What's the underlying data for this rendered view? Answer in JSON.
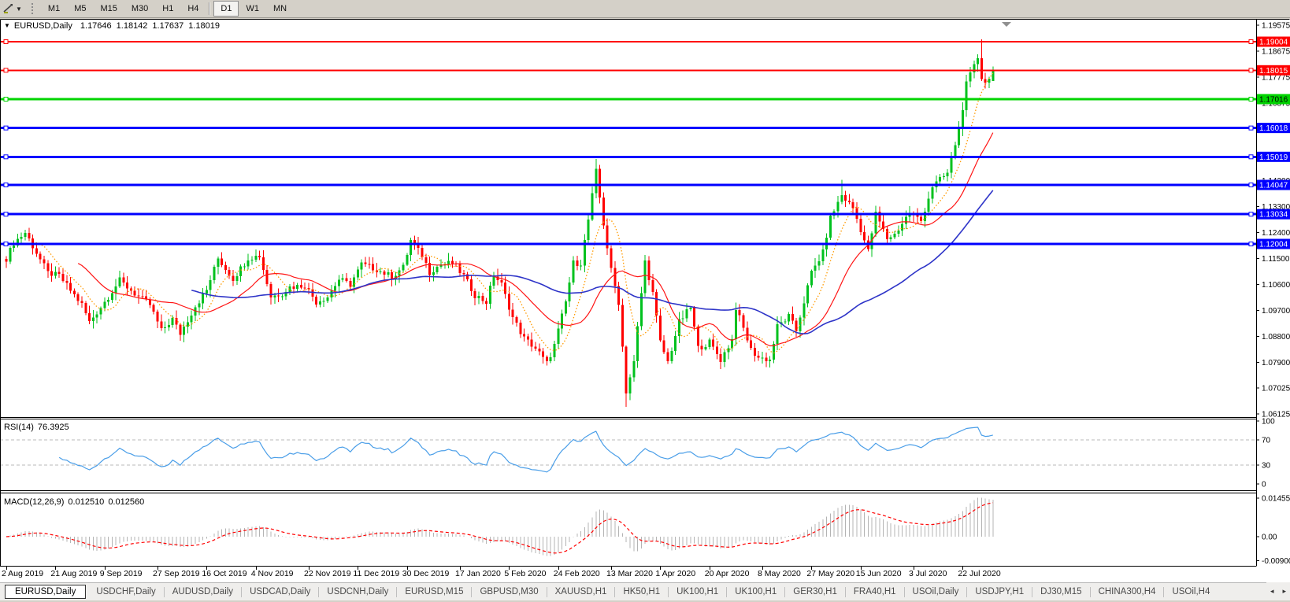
{
  "toolbar": {
    "timeframes": [
      {
        "label": "M1"
      },
      {
        "label": "M5"
      },
      {
        "label": "M15"
      },
      {
        "label": "M30"
      },
      {
        "label": "H1"
      },
      {
        "label": "H4"
      },
      {
        "label": "D1",
        "active": true,
        "separator_before": true
      },
      {
        "label": "W1"
      },
      {
        "label": "MN"
      }
    ]
  },
  "chart": {
    "symbol_label": "EURUSD,Daily",
    "open": "1.17646",
    "high": "1.18142",
    "low": "1.17637",
    "close": "1.18019"
  },
  "chart_data": {
    "type": "candlestick",
    "symbol": "EURUSD",
    "timeframe": "Daily",
    "num_candles": 262,
    "colors": {
      "bull": "#00c11e",
      "bear": "#ff0000",
      "background": "#ffffff",
      "axis_text": "#000000"
    },
    "price_anchors": [
      [
        0,
        1.115
      ],
      [
        2,
        1.1205
      ],
      [
        5,
        1.124
      ],
      [
        8,
        1.117
      ],
      [
        11,
        1.11
      ],
      [
        14,
        1.109
      ],
      [
        17,
        1.104
      ],
      [
        20,
        1.099
      ],
      [
        22,
        1.093
      ],
      [
        26,
        1.1
      ],
      [
        30,
        1.1074
      ],
      [
        33,
        1.104
      ],
      [
        35,
        1.1017
      ],
      [
        38,
        1.099
      ],
      [
        41,
        1.0899
      ],
      [
        44,
        1.094
      ],
      [
        46,
        1.089
      ],
      [
        50,
        1.0985
      ],
      [
        53,
        1.104
      ],
      [
        56,
        1.115
      ],
      [
        60,
        1.108
      ],
      [
        64,
        1.1152
      ],
      [
        67,
        1.116
      ],
      [
        70,
        1.1018
      ],
      [
        73,
        1.103
      ],
      [
        75,
        1.1051
      ],
      [
        79,
        1.1058
      ],
      [
        82,
        1.1
      ],
      [
        85,
        1.1018
      ],
      [
        88,
        1.1078
      ],
      [
        91,
        1.106
      ],
      [
        94,
        1.113
      ],
      [
        98,
        1.1112
      ],
      [
        102,
        1.1087
      ],
      [
        105,
        1.112
      ],
      [
        107,
        1.1212
      ],
      [
        110,
        1.116
      ],
      [
        112,
        1.1103
      ],
      [
        115,
        1.113
      ],
      [
        118,
        1.1135
      ],
      [
        121,
        1.109
      ],
      [
        124,
        1.1023
      ],
      [
        127,
        1.1
      ],
      [
        129,
        1.1093
      ],
      [
        131,
        1.106
      ],
      [
        134,
        1.0945
      ],
      [
        137,
        1.0873
      ],
      [
        140,
        1.084
      ],
      [
        143,
        1.0786
      ],
      [
        145,
        1.085
      ],
      [
        148,
        1.1
      ],
      [
        150,
        1.1134
      ],
      [
        152,
        1.1135
      ],
      [
        154,
        1.1284
      ],
      [
        156,
        1.145
      ],
      [
        158,
        1.127
      ],
      [
        160,
        1.1109
      ],
      [
        162,
        1.0998
      ],
      [
        164,
        1.069
      ],
      [
        166,
        1.079
      ],
      [
        168,
        1.103
      ],
      [
        169,
        1.114
      ],
      [
        171,
        1.103
      ],
      [
        173,
        1.086
      ],
      [
        175,
        1.0791
      ],
      [
        178,
        1.093
      ],
      [
        181,
        1.098
      ],
      [
        183,
        1.084
      ],
      [
        186,
        1.086
      ],
      [
        189,
        1.08
      ],
      [
        192,
        1.087
      ],
      [
        193,
        1.098
      ],
      [
        197,
        1.0834
      ],
      [
        199,
        1.0807
      ],
      [
        202,
        1.08
      ],
      [
        204,
        1.0915
      ],
      [
        207,
        1.0949
      ],
      [
        209,
        1.09
      ],
      [
        213,
        1.1101
      ],
      [
        216,
        1.117
      ],
      [
        218,
        1.129
      ],
      [
        221,
        1.137
      ],
      [
        224,
        1.1325
      ],
      [
        228,
        1.1175
      ],
      [
        230,
        1.1305
      ],
      [
        233,
        1.1219
      ],
      [
        235,
        1.1234
      ],
      [
        239,
        1.131
      ],
      [
        242,
        1.128
      ],
      [
        245,
        1.14
      ],
      [
        249,
        1.1445
      ],
      [
        252,
        1.1596
      ],
      [
        254,
        1.1752
      ],
      [
        257,
        1.1847
      ],
      [
        258,
        1.1778
      ],
      [
        259,
        1.1762
      ],
      [
        260,
        1.177
      ],
      [
        261,
        1.18019
      ]
    ],
    "key_candles": {
      "156": {
        "high": 1.1495
      },
      "164": {
        "low": 1.0636
      },
      "221": {
        "high": 1.1422
      },
      "258": {
        "high": 1.1909
      },
      "261": {
        "open": 1.17646,
        "high": 1.18142,
        "low": 1.17637,
        "close": 1.18019
      }
    },
    "horizontal_lines": [
      {
        "price": 1.19004,
        "color": "#ff0000",
        "label": "1.19004",
        "label_text": "#ffffff",
        "width": 2
      },
      {
        "price": 1.18015,
        "color": "#ff0000",
        "label": "1.18015",
        "label_text": "#ffffff",
        "width": 2
      },
      {
        "price": 1.17016,
        "color": "#00d400",
        "label": "1.17016",
        "label_text": "#000000",
        "width": 3
      },
      {
        "price": 1.16018,
        "color": "#0000ff",
        "label": "1.16018",
        "label_text": "#ffffff",
        "width": 3
      },
      {
        "price": 1.15019,
        "color": "#0000ff",
        "label": "1.15019",
        "label_text": "#ffffff",
        "width": 3
      },
      {
        "price": 1.14047,
        "color": "#0000ff",
        "label": "1.14047",
        "label_text": "#ffffff",
        "width": 3
      },
      {
        "price": 1.13034,
        "color": "#0000ff",
        "label": "1.13034",
        "label_text": "#ffffff",
        "width": 3
      },
      {
        "price": 1.12004,
        "color": "#0000ff",
        "label": "1.12004",
        "label_text": "#ffffff",
        "width": 3
      }
    ],
    "y_ticks": [
      "1.19575",
      "1.18675",
      "1.17775",
      "1.16875",
      "1.14200",
      "1.13300",
      "1.12400",
      "1.11500",
      "1.10600",
      "1.09700",
      "1.08800",
      "1.07900",
      "1.07025",
      "1.06125"
    ],
    "x_labels": [
      {
        "label": "2 Aug 2019",
        "index": 0
      },
      {
        "label": "21 Aug 2019",
        "index": 13
      },
      {
        "label": "9 Sep 2019",
        "index": 26
      },
      {
        "label": "27 Sep 2019",
        "index": 40
      },
      {
        "label": "16 Oct 2019",
        "index": 53
      },
      {
        "label": "4 Nov 2019",
        "index": 66
      },
      {
        "label": "22 Nov 2019",
        "index": 80
      },
      {
        "label": "11 Dec 2019",
        "index": 93
      },
      {
        "label": "30 Dec 2019",
        "index": 106
      },
      {
        "label": "17 Jan 2020",
        "index": 120
      },
      {
        "label": "5 Feb 2020",
        "index": 133
      },
      {
        "label": "24 Feb 2020",
        "index": 146
      },
      {
        "label": "13 Mar 2020",
        "index": 160
      },
      {
        "label": "1 Apr 2020",
        "index": 173
      },
      {
        "label": "20 Apr 2020",
        "index": 186
      },
      {
        "label": "8 May 2020",
        "index": 200
      },
      {
        "label": "27 May 2020",
        "index": 213
      },
      {
        "label": "15 Jun 2020",
        "index": 226
      },
      {
        "label": "3 Jul 2020",
        "index": 240
      },
      {
        "label": "22 Jul 2020",
        "index": 253
      }
    ],
    "moving_averages": [
      {
        "period": 8,
        "color": "#ff9a00",
        "style": "dotted",
        "width": 1.3
      },
      {
        "period": 20,
        "color": "#ff1414",
        "style": "solid",
        "width": 1.2
      },
      {
        "period": 50,
        "color": "#2e34c8",
        "style": "solid",
        "width": 1.6
      }
    ],
    "rsi": {
      "label": "RSI(14)",
      "value": "76.3925",
      "period": 14,
      "levels": [
        70,
        30
      ],
      "axis_labels": [
        "100",
        "70",
        "30",
        "0"
      ],
      "color": "#4a9ee8"
    },
    "macd": {
      "label": "MACD(12,26,9)",
      "value_main": "0.012510",
      "value_signal": "0.012560",
      "fast": 12,
      "slow": 26,
      "signal_period": 9,
      "axis_labels": [
        "0.014556",
        "0.00",
        "-0.009001"
      ],
      "histogram_color": "#b4b4b4",
      "signal_color": "#ff0000"
    }
  },
  "tabs": {
    "items": [
      {
        "label": "EURUSD,Daily",
        "active": true
      },
      {
        "label": "USDCHF,Daily"
      },
      {
        "label": "AUDUSD,Daily"
      },
      {
        "label": "USDCAD,Daily"
      },
      {
        "label": "USDCNH,Daily"
      },
      {
        "label": "EURUSD,M15"
      },
      {
        "label": "GBPUSD,M30"
      },
      {
        "label": "XAUUSD,H1"
      },
      {
        "label": "HK50,H1"
      },
      {
        "label": "UK100,H1"
      },
      {
        "label": "UK100,H1"
      },
      {
        "label": "GER30,H1"
      },
      {
        "label": "FRA40,H1"
      },
      {
        "label": "USOil,Daily"
      },
      {
        "label": "USDJPY,H1"
      },
      {
        "label": "DJ30,M15"
      },
      {
        "label": "CHINA300,H4"
      },
      {
        "label": "USOil,H4"
      }
    ],
    "scroll_left": "◂",
    "scroll_right": "▸"
  }
}
